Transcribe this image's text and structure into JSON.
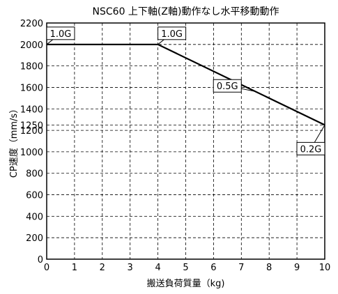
{
  "chart_data": {
    "type": "line",
    "title": "NSC60 上下軸(Z軸)動作なし水平移動動作",
    "xlabel": "搬送負荷質量（kg)",
    "ylabel": "CP速度（mm/s）",
    "xlim": [
      0,
      10
    ],
    "ylim": [
      0,
      2200
    ],
    "grid": true,
    "line_color": "#000000",
    "x_ticks": [
      "0",
      "1",
      "2",
      "3",
      "4",
      "5",
      "6",
      "7",
      "8",
      "9",
      "10"
    ],
    "y_ticks": [
      "0",
      "200",
      "400",
      "600",
      "800",
      "1000",
      "1200",
      "1250",
      "1400",
      "1600",
      "1800",
      "2000",
      "2200"
    ],
    "series": [
      {
        "x": [
          0,
          4,
          10
        ],
        "y": [
          2000,
          2000,
          1250
        ]
      }
    ],
    "annotations": [
      {
        "text": "1.0G",
        "x": 0,
        "y": 2000
      },
      {
        "text": "1.0G",
        "x": 4,
        "y": 2000
      },
      {
        "text": "0.5G",
        "x": 7.5,
        "y": 1562.5
      },
      {
        "text": "0.2G",
        "x": 10,
        "y": 1250
      }
    ]
  }
}
